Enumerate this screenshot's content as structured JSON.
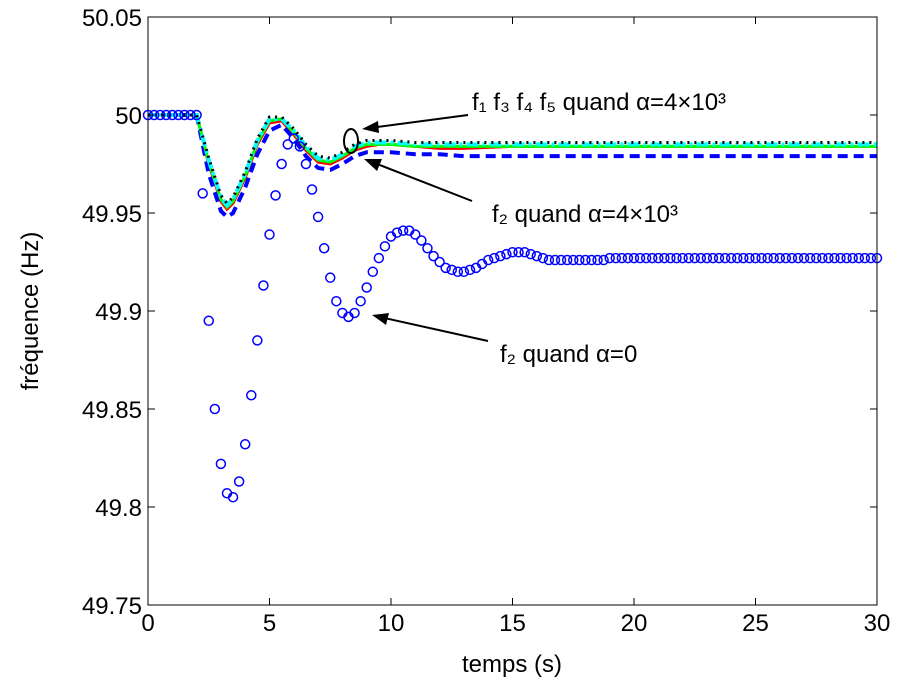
{
  "chart_data": {
    "type": "line",
    "xlabel": "temps (s)",
    "ylabel": "fréquence (Hz)",
    "xlim": [
      0,
      30
    ],
    "xticks": [
      0,
      5,
      10,
      15,
      20,
      25,
      30
    ],
    "ylim": [
      49.75,
      50.05
    ],
    "yticks": [
      49.75,
      49.8,
      49.85,
      49.9,
      49.95,
      50,
      50.05
    ],
    "grid": false,
    "annotations": [
      "f₁ f₃ f₄ f₅ quand α=4×10³",
      "f₂ quand α=4×10³",
      "f₂ quand α=0"
    ],
    "series": [
      {
        "color": "#ff0000",
        "linestyle": "-",
        "x": [
          0,
          1,
          2,
          2.5,
          3,
          3.25,
          3.5,
          4,
          4.5,
          5,
          5.5,
          6,
          6.5,
          7,
          7.5,
          8,
          8.5,
          9,
          9.5,
          10,
          11,
          12,
          13,
          15,
          20,
          25,
          30
        ],
        "values": [
          50,
          50,
          50,
          49.975,
          49.956,
          49.952,
          49.955,
          49.968,
          49.985,
          49.996,
          49.997,
          49.99,
          49.982,
          49.976,
          49.975,
          49.978,
          49.982,
          49.984,
          49.985,
          49.985,
          49.984,
          49.983,
          49.983,
          49.984,
          49.984,
          49.984,
          49.984
        ]
      },
      {
        "color": "#0000ff",
        "linestyle": "--",
        "x": [
          0,
          1,
          2,
          2.5,
          3,
          3.25,
          3.5,
          4,
          4.5,
          5,
          5.5,
          6,
          6.5,
          7,
          7.5,
          8,
          8.5,
          9,
          9.5,
          10,
          11,
          12,
          13,
          15,
          20,
          25,
          30
        ],
        "values": [
          50,
          50,
          50,
          49.97,
          49.951,
          49.948,
          49.95,
          49.963,
          49.98,
          49.992,
          49.995,
          49.988,
          49.979,
          49.973,
          49.972,
          49.975,
          49.979,
          49.981,
          49.981,
          49.981,
          49.98,
          49.98,
          49.979,
          49.979,
          49.979,
          49.979,
          49.979
        ]
      },
      {
        "color": "#00ff00",
        "linestyle": "-",
        "x": [
          0,
          1,
          2,
          2.5,
          3,
          3.25,
          3.5,
          4,
          4.5,
          5,
          5.5,
          6,
          6.5,
          7,
          7.5,
          8,
          8.5,
          9,
          9.5,
          10,
          11,
          12,
          13,
          15,
          20,
          25,
          30
        ],
        "values": [
          50,
          50,
          50,
          49.976,
          49.957,
          49.953,
          49.956,
          49.969,
          49.986,
          49.997,
          49.998,
          49.991,
          49.983,
          49.977,
          49.976,
          49.979,
          49.983,
          49.985,
          49.985,
          49.985,
          49.984,
          49.984,
          49.984,
          49.984,
          49.984,
          49.984,
          49.984
        ]
      },
      {
        "color": "#00ffff",
        "linestyle": "-.",
        "x": [
          0,
          1,
          2,
          2.5,
          3,
          3.25,
          3.5,
          4,
          4.5,
          5,
          5.5,
          6,
          6.5,
          7,
          7.5,
          8,
          8.5,
          9,
          9.5,
          10,
          11,
          12,
          13,
          15,
          20,
          25,
          30
        ],
        "values": [
          50,
          50,
          50,
          49.977,
          49.958,
          49.954,
          49.957,
          49.97,
          49.987,
          49.998,
          49.998,
          49.992,
          49.984,
          49.978,
          49.977,
          49.98,
          49.984,
          49.986,
          49.986,
          49.986,
          49.985,
          49.985,
          49.985,
          49.985,
          49.985,
          49.985,
          49.985
        ]
      },
      {
        "color": "#000000",
        "linestyle": ":",
        "x": [
          0,
          1,
          2,
          2.5,
          3,
          3.25,
          3.5,
          4,
          4.5,
          5,
          5.5,
          6,
          6.5,
          7,
          7.5,
          8,
          8.5,
          9,
          9.5,
          10,
          11,
          12,
          13,
          15,
          20,
          25,
          30
        ],
        "values": [
          50,
          50,
          50,
          49.978,
          49.959,
          49.955,
          49.958,
          49.971,
          49.988,
          49.999,
          49.999,
          49.993,
          49.985,
          49.979,
          49.978,
          49.981,
          49.985,
          49.987,
          49.987,
          49.987,
          49.986,
          49.986,
          49.986,
          49.986,
          49.986,
          49.986,
          49.986
        ]
      },
      {
        "color": "#0000ff",
        "linestyle": "none",
        "marker": "o",
        "x": [
          0,
          0.25,
          0.5,
          0.75,
          1,
          1.25,
          1.5,
          1.75,
          2,
          2.25,
          2.5,
          2.75,
          3,
          3.25,
          3.5,
          3.75,
          4,
          4.25,
          4.5,
          4.75,
          5,
          5.25,
          5.5,
          5.75,
          6,
          6.25,
          6.5,
          6.75,
          7,
          7.25,
          7.5,
          7.75,
          8,
          8.25,
          8.5,
          8.75,
          9,
          9.25,
          9.5,
          9.75,
          10,
          10.25,
          10.5,
          10.75,
          11,
          11.25,
          11.5,
          11.75,
          12,
          12.25,
          12.5,
          12.75,
          13,
          13.25,
          13.5,
          13.75,
          14,
          14.25,
          14.5,
          14.75,
          15,
          15.25,
          15.5,
          15.75,
          16,
          16.25,
          16.5,
          16.75,
          17,
          17.25,
          17.5,
          17.75,
          18,
          18.25,
          18.5,
          18.75,
          19,
          19.25,
          19.5,
          19.75,
          20,
          20.25,
          20.5,
          20.75,
          21,
          21.25,
          21.5,
          21.75,
          22,
          22.25,
          22.5,
          22.75,
          23,
          23.25,
          23.5,
          23.75,
          24,
          24.25,
          24.5,
          24.75,
          25,
          25.25,
          25.5,
          25.75,
          26,
          26.25,
          26.5,
          26.75,
          27,
          27.25,
          27.5,
          27.75,
          28,
          28.25,
          28.5,
          28.75,
          29,
          29.25,
          29.5,
          29.75,
          30
        ],
        "values": [
          50,
          50,
          50,
          50,
          50,
          50,
          50,
          50,
          50,
          49.96,
          49.895,
          49.85,
          49.822,
          49.807,
          49.805,
          49.813,
          49.832,
          49.857,
          49.885,
          49.913,
          49.939,
          49.959,
          49.975,
          49.985,
          49.988,
          49.984,
          49.975,
          49.962,
          49.948,
          49.932,
          49.917,
          49.905,
          49.899,
          49.897,
          49.899,
          49.905,
          49.912,
          49.92,
          49.927,
          49.933,
          49.938,
          49.94,
          49.941,
          49.941,
          49.939,
          49.936,
          49.932,
          49.928,
          49.925,
          49.922,
          49.921,
          49.92,
          49.92,
          49.921,
          49.922,
          49.924,
          49.926,
          49.927,
          49.928,
          49.929,
          49.93,
          49.93,
          49.93,
          49.929,
          49.928,
          49.927,
          49.926,
          49.926,
          49.926,
          49.926,
          49.926,
          49.926,
          49.926,
          49.926,
          49.926,
          49.926,
          49.927,
          49.927,
          49.927,
          49.927,
          49.927,
          49.927,
          49.927,
          49.927,
          49.927,
          49.927,
          49.927,
          49.927,
          49.927,
          49.927,
          49.927,
          49.927,
          49.927,
          49.927,
          49.927,
          49.927,
          49.927,
          49.927,
          49.927,
          49.927,
          49.927,
          49.927,
          49.927,
          49.927,
          49.927,
          49.927,
          49.927,
          49.927,
          49.927,
          49.927,
          49.927,
          49.927,
          49.927,
          49.927,
          49.927,
          49.927,
          49.927,
          49.927,
          49.927,
          49.927,
          49.927
        ]
      }
    ]
  }
}
